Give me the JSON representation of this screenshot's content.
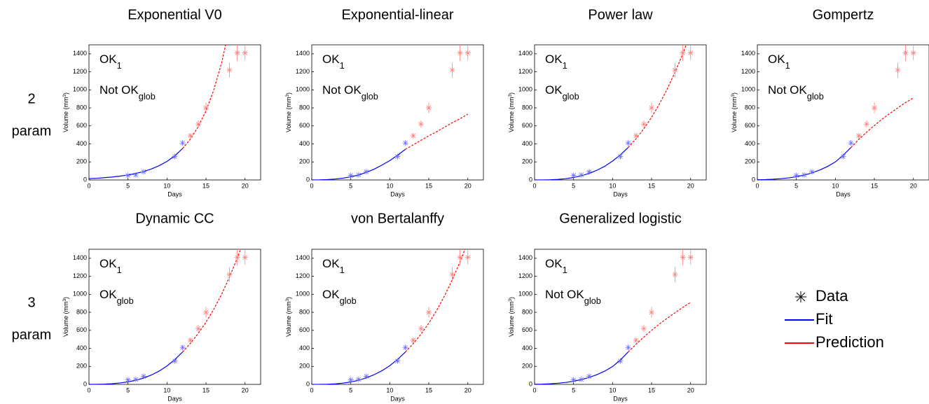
{
  "row_labels": [
    [
      "2",
      "param"
    ],
    [
      "3",
      "param"
    ]
  ],
  "legend": [
    {
      "name": "Data",
      "color": "#000000",
      "kind": "marker"
    },
    {
      "name": "Fit",
      "color": "#0000ff",
      "kind": "line"
    },
    {
      "name": "Prediction",
      "color": "#ff0000",
      "kind": "line"
    }
  ],
  "chart_data": [
    {
      "type": "line",
      "title": "Exponential V0",
      "xlabel": "Days",
      "ylabel": {
        "text": "Volume (mm",
        "sup": "3",
        "end": ")"
      },
      "xlim": [
        0,
        22
      ],
      "ylim": [
        0,
        1500
      ],
      "xticks": [
        0,
        5,
        10,
        15,
        20
      ],
      "yticks": [
        0,
        200,
        400,
        600,
        800,
        1000,
        1200,
        1400
      ],
      "annotations": [
        {
          "text": "OK",
          "sub": "1",
          "color": "#ff0000"
        },
        {
          "text": "Not OK",
          "sub": "glob",
          "color": "#000000"
        }
      ],
      "series": [
        {
          "name": "Fit",
          "color": "#0000ff",
          "x": [
            0,
            1,
            2,
            3,
            4,
            5,
            6,
            7,
            8,
            9,
            10,
            11,
            12
          ],
          "values": [
            15,
            19,
            25,
            33,
            43,
            55,
            72,
            94,
            122,
            159,
            206,
            268,
            349
          ]
        },
        {
          "name": "Prediction",
          "color": "#ff0000",
          "dashed": true,
          "x": [
            12,
            13,
            14,
            15,
            16,
            17,
            18
          ],
          "values": [
            349,
            454,
            591,
            768,
            999,
            1300,
            1690
          ]
        }
      ],
      "data_points": [
        {
          "color": "#7070ff",
          "x": [
            5,
            6,
            7,
            11,
            12
          ],
          "values": [
            50,
            55,
            90,
            260,
            410
          ],
          "errors": [
            10,
            10,
            15,
            25,
            25
          ]
        },
        {
          "color": "#ff8080",
          "x": [
            13,
            14,
            15,
            18,
            19,
            20
          ],
          "values": [
            490,
            620,
            800,
            1220,
            1410,
            1410
          ],
          "errors": [
            30,
            40,
            60,
            80,
            90,
            80
          ]
        }
      ]
    },
    {
      "type": "line",
      "title": "Exponential-linear",
      "xlabel": "Days",
      "ylabel": {
        "text": "Volume (mm",
        "sup": "3",
        "end": ")"
      },
      "xlim": [
        0,
        22
      ],
      "ylim": [
        0,
        1500
      ],
      "xticks": [
        0,
        5,
        10,
        15,
        20
      ],
      "yticks": [
        0,
        200,
        400,
        600,
        800,
        1000,
        1200,
        1400
      ],
      "annotations": [
        {
          "text": "OK",
          "sub": "1",
          "color": "#ff0000"
        },
        {
          "text": "Not OK",
          "sub": "glob",
          "color": "#000000"
        }
      ],
      "series": [
        {
          "name": "Fit",
          "color": "#0000ff",
          "x": [
            0,
            1,
            2,
            3,
            4,
            5,
            6,
            7,
            8,
            9,
            10,
            11,
            12
          ],
          "values": [
            0,
            1,
            4,
            10,
            20,
            35,
            55,
            85,
            120,
            165,
            215,
            275,
            340
          ]
        },
        {
          "name": "Prediction",
          "color": "#ff0000",
          "dashed": true,
          "x": [
            12,
            13,
            14,
            15,
            16,
            17,
            18,
            19,
            20
          ],
          "values": [
            340,
            390,
            440,
            490,
            535,
            585,
            635,
            680,
            730
          ]
        }
      ],
      "data_points": [
        {
          "color": "#7070ff",
          "x": [
            5,
            6,
            7,
            11,
            12
          ],
          "values": [
            50,
            55,
            90,
            260,
            410
          ],
          "errors": [
            10,
            10,
            15,
            25,
            25
          ]
        },
        {
          "color": "#ff8080",
          "x": [
            13,
            14,
            15,
            18,
            19,
            20
          ],
          "values": [
            490,
            620,
            800,
            1220,
            1410,
            1410
          ],
          "errors": [
            30,
            40,
            60,
            80,
            90,
            80
          ]
        }
      ]
    },
    {
      "type": "line",
      "title": "Power law",
      "xlabel": "Days",
      "ylabel": {
        "text": "Volume (mm",
        "sup": "3",
        "end": ")"
      },
      "xlim": [
        0,
        22
      ],
      "ylim": [
        0,
        1500
      ],
      "xticks": [
        0,
        5,
        10,
        15,
        20
      ],
      "yticks": [
        0,
        200,
        400,
        600,
        800,
        1000,
        1200,
        1400
      ],
      "annotations": [
        {
          "text": "OK",
          "sub": "1",
          "color": "#ff0000"
        },
        {
          "text": "OK",
          "sub": "glob",
          "color": "#ff0000"
        }
      ],
      "series": [
        {
          "name": "Fit",
          "color": "#0000ff",
          "x": [
            0,
            1,
            2,
            3,
            4,
            5,
            6,
            7,
            8,
            9,
            10,
            11,
            12
          ],
          "values": [
            0,
            0.2,
            1.8,
            6,
            14,
            27,
            46,
            72,
            108,
            152,
            210,
            278,
            360
          ]
        },
        {
          "name": "Prediction",
          "color": "#ff0000",
          "dashed": true,
          "x": [
            12,
            13,
            14,
            15,
            16,
            17,
            18,
            19,
            20
          ],
          "values": [
            360,
            457,
            568,
            697,
            843,
            1009,
            1195,
            1400,
            1632
          ]
        }
      ],
      "data_points": [
        {
          "color": "#7070ff",
          "x": [
            5,
            6,
            7,
            11,
            12
          ],
          "values": [
            50,
            55,
            90,
            260,
            410
          ],
          "errors": [
            10,
            10,
            15,
            25,
            25
          ]
        },
        {
          "color": "#ff8080",
          "x": [
            13,
            14,
            15,
            18,
            19,
            20
          ],
          "values": [
            490,
            620,
            800,
            1220,
            1410,
            1410
          ],
          "errors": [
            30,
            40,
            60,
            80,
            90,
            80
          ]
        }
      ]
    },
    {
      "type": "line",
      "title": "Gompertz",
      "xlabel": "Days",
      "ylabel": {
        "text": "Volume (mm",
        "sup": "3",
        "end": ")"
      },
      "xlim": [
        0,
        22
      ],
      "ylim": [
        0,
        1500
      ],
      "xticks": [
        0,
        5,
        10,
        15,
        20
      ],
      "yticks": [
        0,
        200,
        400,
        600,
        800,
        1000,
        1200,
        1400
      ],
      "annotations": [
        {
          "text": "OK",
          "sub": "1",
          "color": "#ff0000"
        },
        {
          "text": "Not OK",
          "sub": "glob",
          "color": "#000000"
        }
      ],
      "series": [
        {
          "name": "Fit",
          "color": "#0000ff",
          "x": [
            0,
            1,
            2,
            3,
            4,
            5,
            6,
            7,
            8,
            9,
            10,
            11,
            12
          ],
          "values": [
            2,
            4,
            8,
            14,
            23,
            36,
            54,
            78,
            110,
            150,
            200,
            275,
            360
          ]
        },
        {
          "name": "Prediction",
          "color": "#ff0000",
          "dashed": true,
          "x": [
            12,
            13,
            14,
            15,
            16,
            17,
            18,
            19,
            20
          ],
          "values": [
            360,
            450,
            530,
            605,
            675,
            740,
            800,
            860,
            910
          ]
        }
      ],
      "data_points": [
        {
          "color": "#7070ff",
          "x": [
            5,
            6,
            7,
            11,
            12
          ],
          "values": [
            50,
            55,
            90,
            260,
            410
          ],
          "errors": [
            10,
            10,
            15,
            25,
            25
          ]
        },
        {
          "color": "#ff8080",
          "x": [
            13,
            14,
            15,
            18,
            19,
            20
          ],
          "values": [
            490,
            620,
            800,
            1220,
            1410,
            1410
          ],
          "errors": [
            30,
            40,
            60,
            80,
            90,
            80
          ]
        }
      ]
    },
    {
      "type": "line",
      "title": "Dynamic CC",
      "xlabel": "Days",
      "ylabel": {
        "text": "Volume (mm",
        "sup": "3",
        "end": ")"
      },
      "xlim": [
        0,
        22
      ],
      "ylim": [
        0,
        1500
      ],
      "xticks": [
        0,
        5,
        10,
        15,
        20
      ],
      "yticks": [
        0,
        200,
        400,
        600,
        800,
        1000,
        1200,
        1400
      ],
      "annotations": [
        {
          "text": "OK",
          "sub": "1",
          "color": "#ff0000"
        },
        {
          "text": "OK",
          "sub": "glob",
          "color": "#ff0000"
        }
      ],
      "series": [
        {
          "name": "Fit",
          "color": "#0000ff",
          "x": [
            0,
            1,
            2,
            3,
            4,
            5,
            6,
            7,
            8,
            9,
            10,
            11,
            12
          ],
          "values": [
            0,
            1,
            3,
            8,
            16,
            28,
            46,
            70,
            104,
            148,
            205,
            275,
            360
          ]
        },
        {
          "name": "Prediction",
          "color": "#ff0000",
          "dashed": true,
          "x": [
            12,
            13,
            14,
            15,
            16,
            17,
            18,
            19,
            20
          ],
          "values": [
            360,
            455,
            565,
            690,
            835,
            1000,
            1190,
            1400,
            1640
          ]
        }
      ],
      "data_points": [
        {
          "color": "#7070ff",
          "x": [
            5,
            6,
            7,
            11,
            12
          ],
          "values": [
            50,
            55,
            90,
            260,
            410
          ],
          "errors": [
            10,
            10,
            15,
            25,
            25
          ]
        },
        {
          "color": "#ff8080",
          "x": [
            13,
            14,
            15,
            18,
            19,
            20
          ],
          "values": [
            490,
            620,
            800,
            1220,
            1410,
            1410
          ],
          "errors": [
            30,
            40,
            60,
            80,
            90,
            80
          ]
        }
      ]
    },
    {
      "type": "line",
      "title": "von Bertalanffy",
      "xlabel": "Days",
      "ylabel": {
        "text": "Volume (mm",
        "sup": "3",
        "end": ")"
      },
      "xlim": [
        0,
        22
      ],
      "ylim": [
        0,
        1500
      ],
      "xticks": [
        0,
        5,
        10,
        15,
        20
      ],
      "yticks": [
        0,
        200,
        400,
        600,
        800,
        1000,
        1200,
        1400
      ],
      "annotations": [
        {
          "text": "OK",
          "sub": "1",
          "color": "#ff0000"
        },
        {
          "text": "OK",
          "sub": "glob",
          "color": "#ff0000"
        }
      ],
      "series": [
        {
          "name": "Fit",
          "color": "#0000ff",
          "x": [
            0,
            1,
            2,
            3,
            4,
            5,
            6,
            7,
            8,
            9,
            10,
            11,
            12
          ],
          "values": [
            0,
            0.3,
            2,
            6,
            14,
            27,
            46,
            72,
            108,
            152,
            208,
            277,
            360
          ]
        },
        {
          "name": "Prediction",
          "color": "#ff0000",
          "dashed": true,
          "x": [
            12,
            13,
            14,
            15,
            16,
            17,
            18,
            19,
            20
          ],
          "values": [
            360,
            452,
            558,
            680,
            820,
            980,
            1160,
            1360,
            1580
          ]
        }
      ],
      "data_points": [
        {
          "color": "#7070ff",
          "x": [
            5,
            6,
            7,
            11,
            12
          ],
          "values": [
            50,
            55,
            90,
            260,
            410
          ],
          "errors": [
            10,
            10,
            15,
            25,
            25
          ]
        },
        {
          "color": "#ff8080",
          "x": [
            13,
            14,
            15,
            18,
            19,
            20
          ],
          "values": [
            490,
            620,
            800,
            1220,
            1410,
            1410
          ],
          "errors": [
            30,
            40,
            60,
            80,
            90,
            80
          ]
        }
      ]
    },
    {
      "type": "line",
      "title": "Generalized logistic",
      "xlabel": "Days",
      "ylabel": {
        "text": "Volume (mm",
        "sup": "3",
        "end": ")"
      },
      "xlim": [
        0,
        22
      ],
      "ylim": [
        0,
        1500
      ],
      "xticks": [
        0,
        5,
        10,
        15,
        20
      ],
      "yticks": [
        0,
        200,
        400,
        600,
        800,
        1000,
        1200,
        1400
      ],
      "annotations": [
        {
          "text": "OK",
          "sub": "1",
          "color": "#ff0000"
        },
        {
          "text": "Not OK",
          "sub": "glob",
          "color": "#000000"
        }
      ],
      "series": [
        {
          "name": "Fit",
          "color": "#0000ff",
          "x": [
            0,
            1,
            2,
            3,
            4,
            5,
            6,
            7,
            8,
            9,
            10,
            11,
            12
          ],
          "values": [
            1,
            3,
            7,
            13,
            22,
            35,
            53,
            77,
            108,
            148,
            198,
            272,
            360
          ]
        },
        {
          "name": "Prediction",
          "color": "#ff0000",
          "dashed": true,
          "x": [
            12,
            13,
            14,
            15,
            16,
            17,
            18,
            19,
            20
          ],
          "values": [
            360,
            445,
            525,
            600,
            670,
            735,
            795,
            855,
            910
          ]
        }
      ],
      "data_points": [
        {
          "color": "#7070ff",
          "x": [
            5,
            6,
            7,
            11,
            12
          ],
          "values": [
            50,
            55,
            90,
            260,
            410
          ],
          "errors": [
            10,
            10,
            15,
            25,
            25
          ]
        },
        {
          "color": "#ff8080",
          "x": [
            13,
            14,
            15,
            18,
            19,
            20
          ],
          "values": [
            490,
            620,
            800,
            1220,
            1410,
            1410
          ],
          "errors": [
            30,
            40,
            60,
            80,
            90,
            80
          ]
        }
      ]
    }
  ]
}
